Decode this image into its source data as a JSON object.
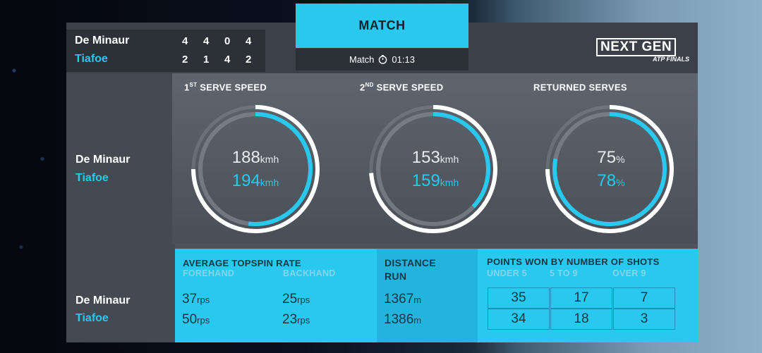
{
  "colors": {
    "accent": "#28c8ef",
    "panel": "#4e535c",
    "dark": "#2c3037"
  },
  "players": {
    "p1": "De Minaur",
    "p2": "Tiafoe"
  },
  "score": {
    "p1": [
      "4",
      "4",
      "0",
      "4"
    ],
    "p2": [
      "2",
      "1",
      "4",
      "2"
    ]
  },
  "header": {
    "tab": "MATCH",
    "match_label": "Match",
    "clock_icon": "clock-icon",
    "time": "01:13"
  },
  "logo": {
    "line1": "NEXT GEN",
    "line2": "ATP FINALS"
  },
  "gauges": [
    {
      "title_sup": "ST",
      "title_pre": "1",
      "title_rest": " SERVE SPEED",
      "p1_value": "188",
      "p2_value": "194",
      "unit": "kmh",
      "p1_fraction": 0.75,
      "p2_fraction": 0.52
    },
    {
      "title_sup": "ND",
      "title_pre": "2",
      "title_rest": " SERVE SPEED",
      "p1_value": "153",
      "p2_value": "159",
      "unit": "kmh",
      "p1_fraction": 0.74,
      "p2_fraction": 0.37
    },
    {
      "title_sup": "",
      "title_pre": "",
      "title_rest": "RETURNED SERVES",
      "p1_value": "75",
      "p2_value": "78",
      "unit": "%",
      "p1_fraction": 0.75,
      "p2_fraction": 0.78
    }
  ],
  "topspin": {
    "title": "AVERAGE TOPSPIN RATE",
    "forehand_label": "FOREHAND",
    "backhand_label": "BACKHAND",
    "p1_forehand": "37",
    "p1_backhand": "25",
    "p2_forehand": "50",
    "p2_backhand": "23",
    "unit": "rps"
  },
  "distance": {
    "title_line1": "DISTANCE",
    "title_line2": "RUN",
    "p1": "1367",
    "p2": "1386",
    "unit": "m"
  },
  "points": {
    "title": "POINTS WON BY NUMBER OF SHOTS",
    "cols": [
      "UNDER 5",
      "5 TO 9",
      "OVER 9"
    ],
    "p1": [
      "35",
      "17",
      "7"
    ],
    "p2": [
      "34",
      "18",
      "3"
    ]
  }
}
